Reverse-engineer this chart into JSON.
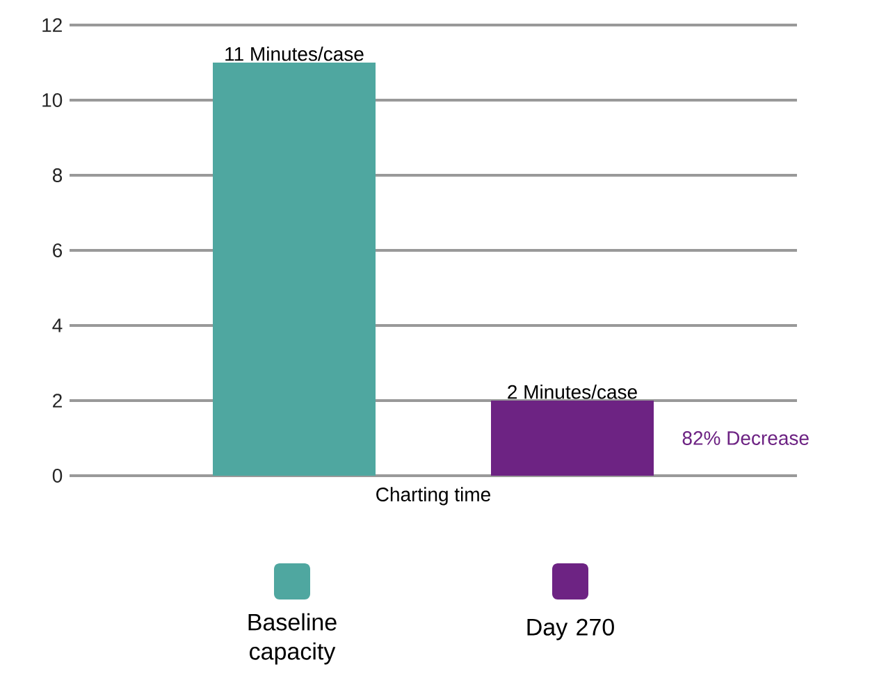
{
  "chart_data": {
    "type": "bar",
    "categories": [
      "Charting time"
    ],
    "series": [
      {
        "name": "Baseline capacity",
        "color": "#4fa7a0",
        "values": [
          11
        ],
        "value_labels": [
          "11 Minutes/case"
        ]
      },
      {
        "name": "Day 270",
        "color": "#6d2383",
        "values": [
          2
        ],
        "value_labels": [
          "2 Minutes/case"
        ]
      }
    ],
    "ylim": [
      0,
      12
    ],
    "yticks": [
      0,
      2,
      4,
      6,
      8,
      10,
      12
    ],
    "grid": "y",
    "legend": "bottom",
    "annotations": [
      "82% Decrease"
    ]
  }
}
